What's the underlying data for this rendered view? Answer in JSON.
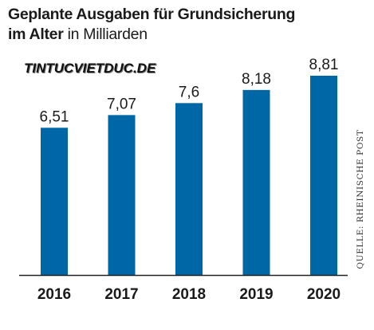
{
  "title": {
    "line1": "Geplante Ausgaben für Grundsicherung",
    "line2_bold": "im Alter",
    "line2_unit": " in Milliarden"
  },
  "watermark": "TINTUCVIETDUC.DE",
  "source": "QUELLE: RHEINISCHE POST",
  "colors": {
    "bar": "#0067a6",
    "axis": "#222222",
    "text": "#1a1a1a"
  },
  "chart_data": {
    "type": "bar",
    "title": "Geplante Ausgaben für Grundsicherung im Alter in Milliarden",
    "categories": [
      "2016",
      "2017",
      "2018",
      "2019",
      "2020"
    ],
    "values": [
      6.51,
      7.07,
      7.6,
      8.18,
      8.81
    ],
    "value_labels": [
      "6,51",
      "7,07",
      "7,6",
      "8,18",
      "8,81"
    ],
    "xlabel": "",
    "ylabel": "",
    "ylim": [
      0,
      8.81
    ],
    "grid": false,
    "legend": "none"
  }
}
